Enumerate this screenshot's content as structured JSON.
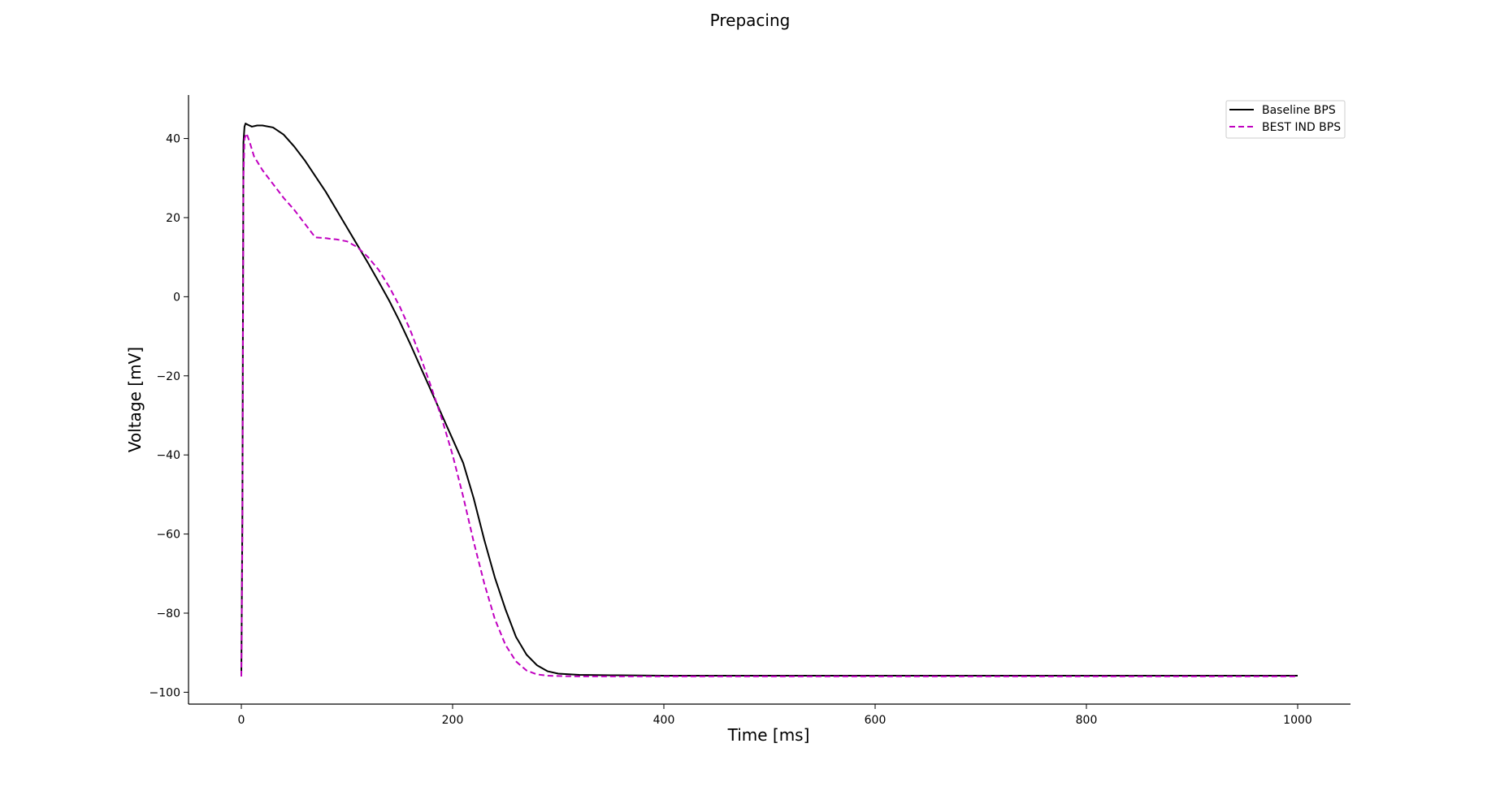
{
  "chart_data": {
    "type": "line",
    "title": "Prepacing",
    "xlabel": "Time [ms]",
    "ylabel": "Voltage [mV]",
    "xlim": [
      -50,
      1050
    ],
    "ylim": [
      -103,
      51
    ],
    "xticks": [
      0,
      200,
      400,
      600,
      800,
      1000
    ],
    "yticks": [
      -100,
      -80,
      -60,
      -40,
      -20,
      0,
      20,
      40
    ],
    "xtick_labels": [
      "0",
      "200",
      "400",
      "600",
      "800",
      "1000"
    ],
    "ytick_labels": [
      "−100",
      "−80",
      "−60",
      "−40",
      "−20",
      "0",
      "20",
      "40"
    ],
    "grid": false,
    "legend_position": "top-right",
    "series": [
      {
        "name": "Baseline BPS",
        "color": "#000000",
        "style": "solid",
        "x": [
          0,
          1,
          2,
          3,
          4,
          6,
          10,
          15,
          20,
          30,
          40,
          50,
          60,
          70,
          80,
          90,
          100,
          110,
          120,
          130,
          140,
          150,
          160,
          170,
          180,
          190,
          200,
          210,
          220,
          230,
          240,
          250,
          260,
          270,
          280,
          290,
          300,
          320,
          350,
          400,
          600,
          800,
          1000
        ],
        "y": [
          -96,
          -55,
          39,
          43,
          43.8,
          43.5,
          43,
          43.3,
          43.3,
          42.8,
          41,
          38,
          34.5,
          30.5,
          26.5,
          22,
          17.5,
          13,
          8.5,
          3.8,
          -1,
          -6.3,
          -12,
          -18,
          -24,
          -30,
          -36,
          -42,
          -51,
          -61.5,
          -71,
          -79,
          -86,
          -90.5,
          -93.2,
          -94.7,
          -95.3,
          -95.6,
          -95.7,
          -95.8,
          -95.8,
          -95.8,
          -95.8
        ]
      },
      {
        "name": "BEST IND BPS",
        "color": "#c000c0",
        "style": "dashed",
        "x": [
          0,
          1,
          2,
          3,
          5,
          8,
          12,
          20,
          30,
          40,
          50,
          60,
          70,
          80,
          85,
          90,
          100,
          110,
          120,
          130,
          140,
          150,
          160,
          170,
          180,
          190,
          200,
          210,
          220,
          230,
          240,
          250,
          260,
          270,
          280,
          290,
          300,
          320,
          350,
          400,
          600,
          800,
          1000
        ],
        "y": [
          -96,
          -60,
          30,
          40,
          41.3,
          39,
          35.5,
          32,
          28.5,
          25,
          22,
          18.5,
          15,
          14.8,
          14.6,
          14.5,
          14,
          12.5,
          10,
          6.8,
          2.5,
          -2.5,
          -8.5,
          -15.5,
          -23,
          -31,
          -40,
          -50.5,
          -62,
          -72.5,
          -81.5,
          -88,
          -92.2,
          -94.5,
          -95.5,
          -95.8,
          -95.9,
          -96,
          -96,
          -96,
          -96,
          -96,
          -96
        ]
      }
    ]
  }
}
